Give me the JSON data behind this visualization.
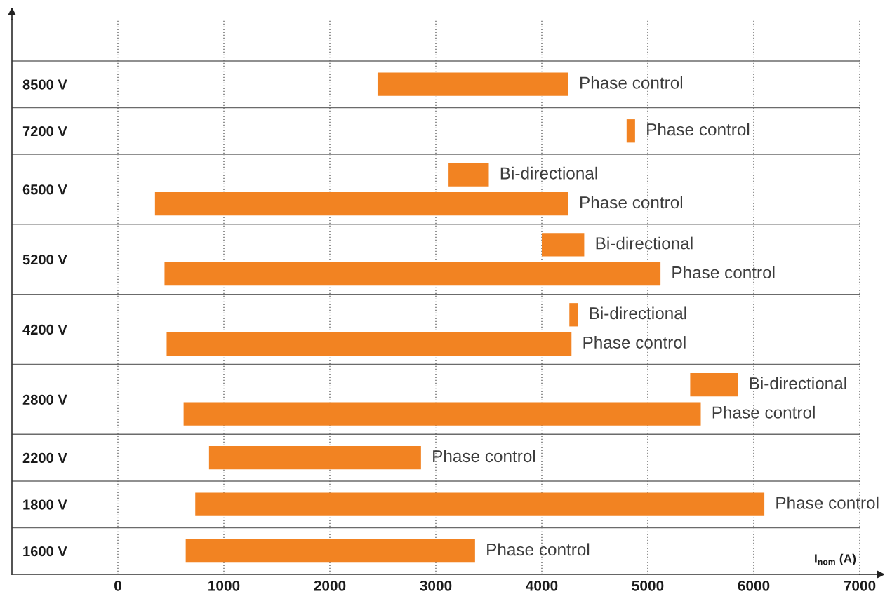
{
  "chart_data": {
    "type": "bar",
    "orientation": "horizontal",
    "xlabel": "I$_{nom}$ (A)",
    "categories": [
      "8500 V",
      "7200 V",
      "6500 V",
      "5200 V",
      "4200 V",
      "2800 V",
      "2200 V",
      "1800 V",
      "1600 V"
    ],
    "series": [
      {
        "name": "Bi-directional",
        "color": "#f28322",
        "base": [
          null,
          null,
          3120,
          4000,
          4260,
          5400,
          null,
          null,
          null
        ],
        "values": [
          null,
          null,
          380,
          400,
          80,
          450,
          null,
          null,
          null
        ]
      },
      {
        "name": "Phase control",
        "color": "#f28322",
        "base": [
          2450,
          4800,
          350,
          440,
          460,
          620,
          860,
          730,
          640
        ],
        "values": [
          1800,
          80,
          3900,
          4680,
          3820,
          4880,
          2000,
          5370,
          2730
        ]
      }
    ],
    "xlim": [
      -1000,
      7000
    ],
    "xticks": [
      0,
      1000,
      2000,
      3000,
      4000,
      5000,
      6000,
      7000
    ],
    "grid": "x",
    "legend": false
  }
}
